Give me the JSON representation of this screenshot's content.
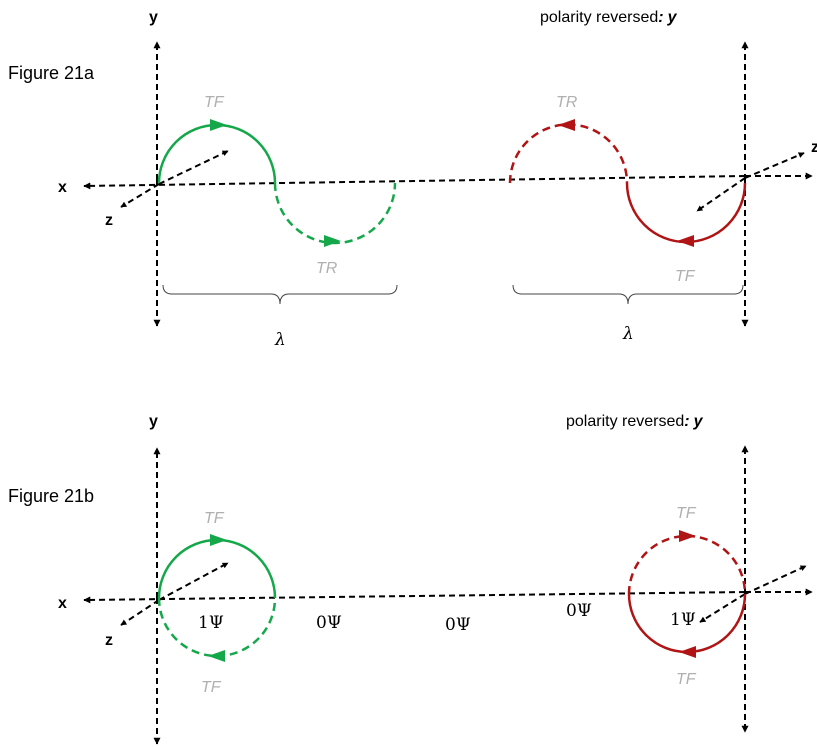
{
  "colors": {
    "green": "#14a84a",
    "red": "#b01414",
    "label_grey": "#b0b0b0",
    "axis": "#000000"
  },
  "fig_a": {
    "title": "Figure 21a",
    "y_left": "y",
    "y_right_prefix": "polarity reversed",
    "y_right_sep": ":",
    "y_right_axis": "y",
    "x_label": "x",
    "z_left": "z",
    "z_right": "z",
    "tf_left": "TF",
    "tr_left": "TR",
    "tr_right": "TR",
    "tf_right": "TF",
    "lambda_left": "λ",
    "lambda_right": "λ"
  },
  "fig_b": {
    "y_left": "y",
    "y_right_prefix": "polarity reversed",
    "y_right_sep": ":",
    "y_right_axis": "y",
    "title": "Figure 21b",
    "x_label": "x",
    "z_left": "z",
    "tf_left_top": "TF",
    "tf_left_bottom": "TF",
    "tf_right_top": "TF",
    "tf_right_bottom": "TF",
    "psi_labels": [
      "1Ψ",
      "0Ψ",
      "0Ψ",
      "0Ψ",
      "1Ψ"
    ]
  }
}
